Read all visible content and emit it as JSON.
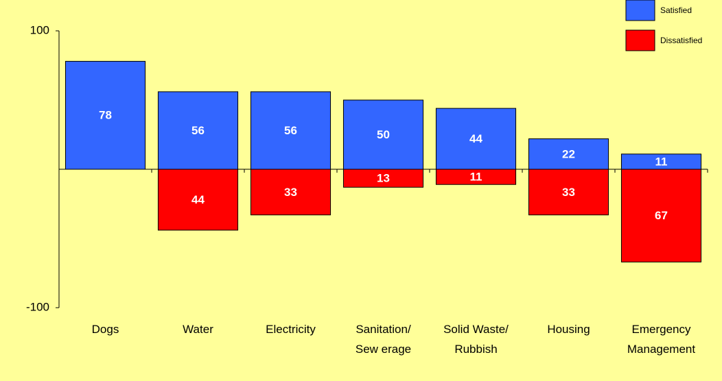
{
  "chart_data": {
    "type": "bar",
    "categories": [
      "Dogs",
      "Water",
      "Electricity",
      "Sanitation/\nSew erage",
      "Solid Waste/\nRubbish",
      "Housing",
      "Emergency\nManagement"
    ],
    "series": [
      {
        "name": "Satisfied",
        "color": "#3366ff",
        "values": [
          78,
          56,
          56,
          50,
          44,
          22,
          11
        ]
      },
      {
        "name": "Dissatisfied",
        "color": "#ff0000",
        "values": [
          null,
          -44,
          -33,
          -13,
          -11,
          -33,
          -67
        ],
        "value_labels": [
          null,
          "44",
          "33",
          "13",
          "11",
          "33",
          "67"
        ]
      }
    ],
    "ylim": [
      -100,
      100
    ],
    "yticks": [
      -100,
      100
    ],
    "legend": "top-right"
  }
}
